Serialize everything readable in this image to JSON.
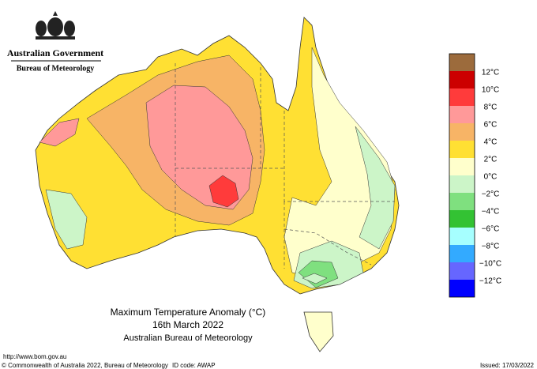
{
  "header": {
    "government": "Australian Government",
    "bureau": "Bureau of Meteorology"
  },
  "map": {
    "title": "Maximum Temperature Anomaly (°C)",
    "date": "16th March 2022",
    "source": "Australian Bureau of Meteorology"
  },
  "legend": {
    "colors": [
      "#9c6b3c",
      "#cc0000",
      "#ff3b3b",
      "#ff9999",
      "#f7b466",
      "#ffe033",
      "#ffffcc",
      "#ccf5c8",
      "#7fe07f",
      "#33c233",
      "#a6ffff",
      "#33aaff",
      "#6666ff",
      "#0000ff"
    ],
    "labels": [
      "12°C",
      "10°C",
      "8°C",
      "6°C",
      "4°C",
      "2°C",
      "0°C",
      "−2°C",
      "−4°C",
      "−6°C",
      "−8°C",
      "−10°C",
      "−12°C"
    ]
  },
  "footer": {
    "url": "http://www.bom.gov.au",
    "copyright": "© Commonwealth of Australia 2022, Bureau of Meteorology",
    "id_code": "ID code: AWAP",
    "issued": "Issued: 17/03/2022"
  }
}
